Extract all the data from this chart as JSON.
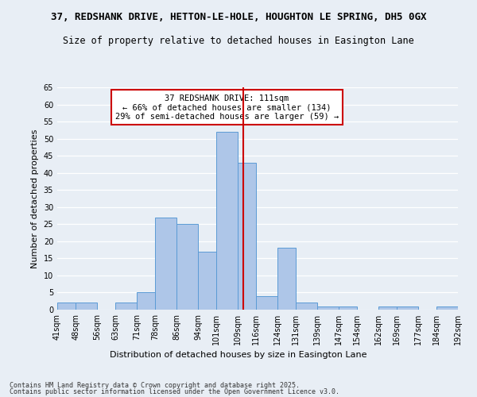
{
  "title": "37, REDSHANK DRIVE, HETTON-LE-HOLE, HOUGHTON LE SPRING, DH5 0GX",
  "subtitle": "Size of property relative to detached houses in Easington Lane",
  "xlabel": "Distribution of detached houses by size in Easington Lane",
  "ylabel": "Number of detached properties",
  "bins": [
    41,
    48,
    56,
    63,
    71,
    78,
    86,
    94,
    101,
    109,
    116,
    124,
    131,
    139,
    147,
    154,
    162,
    169,
    177,
    184,
    192
  ],
  "bin_labels": [
    "41sqm",
    "48sqm",
    "56sqm",
    "63sqm",
    "71sqm",
    "78sqm",
    "86sqm",
    "94sqm",
    "101sqm",
    "109sqm",
    "116sqm",
    "124sqm",
    "131sqm",
    "139sqm",
    "147sqm",
    "154sqm",
    "162sqm",
    "169sqm",
    "177sqm",
    "184sqm",
    "192sqm"
  ],
  "counts": [
    2,
    2,
    0,
    2,
    5,
    27,
    25,
    17,
    52,
    43,
    4,
    18,
    2,
    1,
    1,
    0,
    1,
    1,
    0,
    1
  ],
  "bar_color": "#aec6e8",
  "bar_edge_color": "#5b9bd5",
  "vline_x": 111,
  "vline_color": "#cc0000",
  "annotation_text": "37 REDSHANK DRIVE: 111sqm\n← 66% of detached houses are smaller (134)\n29% of semi-detached houses are larger (59) →",
  "annotation_box_color": "#ffffff",
  "annotation_box_edge": "#cc0000",
  "ylim": [
    0,
    65
  ],
  "yticks": [
    0,
    5,
    10,
    15,
    20,
    25,
    30,
    35,
    40,
    45,
    50,
    55,
    60,
    65
  ],
  "footer1": "Contains HM Land Registry data © Crown copyright and database right 2025.",
  "footer2": "Contains public sector information licensed under the Open Government Licence v3.0.",
  "bg_color": "#e8eef5",
  "grid_color": "#ffffff",
  "title_fontsize": 9,
  "subtitle_fontsize": 8.5,
  "axis_label_fontsize": 8,
  "tick_fontsize": 7,
  "annotation_fontsize": 7.5
}
